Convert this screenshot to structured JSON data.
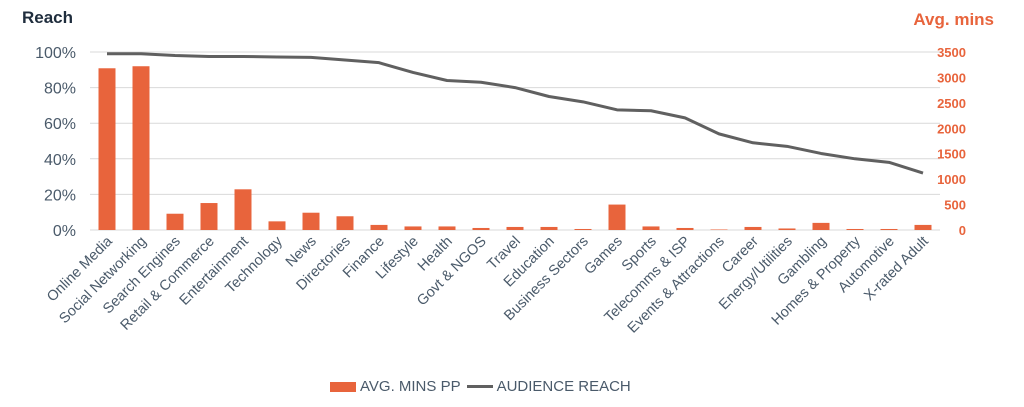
{
  "chart_data": {
    "type": "bar",
    "ylabel_left": "Reach",
    "ylabel_right": "Avg. mins",
    "categories": [
      "Online Media",
      "Social Networking",
      "Search Engines",
      "Retail & Commerce",
      "Entertainment",
      "Technology",
      "News",
      "Directories",
      "Finance",
      "Lifestyle",
      "Health",
      "Govt & NGOS",
      "Travel",
      "Education",
      "Business Sectors",
      "Games",
      "Sports",
      "Telecomms & ISP",
      "Events & Attractions",
      "Career",
      "Energy/Utilities",
      "Gambling",
      "Homes & Property",
      "Automotive",
      "X-rated Adult"
    ],
    "left_ticks": [
      "0%",
      "20%",
      "40%",
      "60%",
      "80%",
      "100%"
    ],
    "left_ylim": [
      0,
      100
    ],
    "right_ticks": [
      "0",
      "500",
      "1000",
      "1500",
      "2000",
      "2500",
      "3000",
      "3500"
    ],
    "right_ylim": [
      0,
      3500
    ],
    "series": [
      {
        "name": "AVG. MINS PP",
        "axis": "right",
        "kind": "bar",
        "color": "#e8643c",
        "values": [
          3180,
          3220,
          320,
          530,
          800,
          170,
          340,
          270,
          100,
          70,
          70,
          40,
          60,
          60,
          20,
          500,
          70,
          40,
          10,
          60,
          30,
          140,
          20,
          20,
          100
        ]
      },
      {
        "name": "AUDIENCE REACH",
        "axis": "left",
        "kind": "line",
        "color": "#606060",
        "values": [
          99,
          99,
          98,
          97.5,
          97.5,
          97.2,
          97,
          95.5,
          94,
          88.5,
          84,
          83,
          80,
          75,
          72,
          67.5,
          67,
          63,
          54,
          49,
          47,
          43,
          40,
          38,
          32
        ]
      }
    ],
    "legend_position": "bottom",
    "grid": true
  }
}
